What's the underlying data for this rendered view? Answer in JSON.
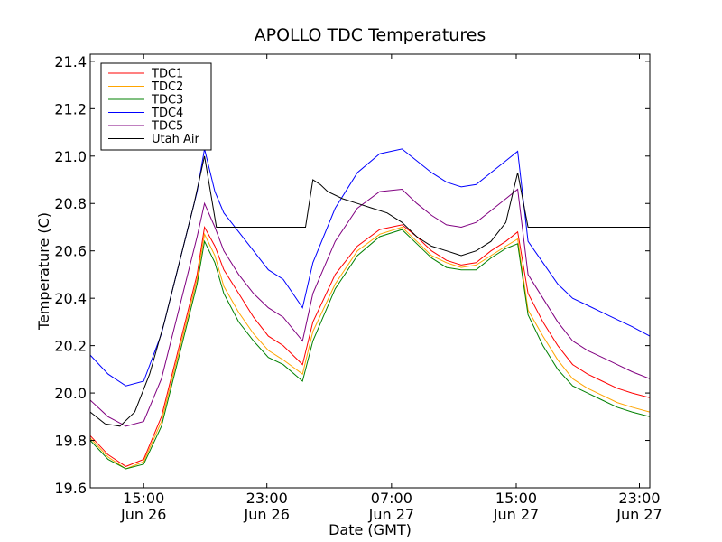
{
  "chart_data": {
    "type": "line",
    "title": "APOLLO TDC Temperatures",
    "xlabel": "Date (GMT)",
    "ylabel": "Temperature (C)",
    "x_unit": "hours since Jun 26 10:00 GMT",
    "xlim": [
      0,
      37.7
    ],
    "ylim": [
      19.6,
      21.43
    ],
    "y_ticks": [
      19.6,
      19.8,
      20.0,
      20.2,
      20.4,
      20.6,
      20.8,
      21.0,
      21.2,
      21.4
    ],
    "y_tick_labels": [
      "19.6",
      "19.8",
      "20.0",
      "20.2",
      "20.4",
      "20.6",
      "20.8",
      "21.0",
      "21.2",
      "21.4"
    ],
    "x_ticks": [
      {
        "x": 3.6,
        "time": "15:00",
        "date": "Jun 26"
      },
      {
        "x": 11.9,
        "time": "23:00",
        "date": "Jun 26"
      },
      {
        "x": 20.3,
        "time": "07:00",
        "date": "Jun 27"
      },
      {
        "x": 28.7,
        "time": "15:00",
        "date": "Jun 27"
      },
      {
        "x": 37.0,
        "time": "23:00",
        "date": "Jun 27"
      }
    ],
    "grid": false,
    "legend_position": "top-left",
    "series": [
      {
        "name": "TDC1",
        "color": "#ff0000",
        "x": [
          0,
          1.2,
          2.4,
          3.6,
          4.8,
          6.0,
          7.2,
          7.7,
          8.4,
          9.0,
          10.0,
          11.0,
          12.0,
          13.0,
          14.3,
          15.0,
          16.5,
          18.0,
          19.5,
          21.0,
          22.0,
          23.0,
          24.0,
          25.0,
          26.0,
          27.0,
          28.0,
          28.8,
          29.5,
          30.5,
          31.5,
          32.5,
          33.5,
          34.5,
          35.5,
          36.5,
          37.7
        ],
        "y": [
          19.82,
          19.74,
          19.69,
          19.72,
          19.9,
          20.2,
          20.5,
          20.7,
          20.62,
          20.52,
          20.42,
          20.32,
          20.24,
          20.2,
          20.12,
          20.3,
          20.5,
          20.62,
          20.69,
          20.71,
          20.66,
          20.6,
          20.56,
          20.54,
          20.55,
          20.6,
          20.64,
          20.68,
          20.42,
          20.3,
          20.2,
          20.12,
          20.08,
          20.05,
          20.02,
          20.0,
          19.98
        ]
      },
      {
        "name": "TDC2",
        "color": "#ffa500",
        "x": [
          0,
          1.2,
          2.4,
          3.6,
          4.8,
          6.0,
          7.2,
          7.7,
          8.4,
          9.0,
          10.0,
          11.0,
          12.0,
          13.0,
          14.3,
          15.0,
          16.5,
          18.0,
          19.5,
          21.0,
          22.0,
          23.0,
          24.0,
          25.0,
          26.0,
          27.0,
          28.0,
          28.8,
          29.5,
          30.5,
          31.5,
          32.5,
          33.5,
          34.5,
          35.5,
          36.5,
          37.7
        ],
        "y": [
          19.81,
          19.73,
          19.68,
          19.71,
          19.88,
          20.18,
          20.48,
          20.67,
          20.58,
          20.45,
          20.34,
          20.25,
          20.18,
          20.14,
          20.08,
          20.26,
          20.46,
          20.6,
          20.67,
          20.7,
          20.64,
          20.58,
          20.55,
          20.53,
          20.54,
          20.58,
          20.62,
          20.65,
          20.35,
          20.24,
          20.14,
          20.06,
          20.02,
          19.99,
          19.96,
          19.94,
          19.92
        ]
      },
      {
        "name": "TDC3",
        "color": "#008000",
        "x": [
          0,
          1.2,
          2.4,
          3.6,
          4.8,
          6.0,
          7.2,
          7.7,
          8.4,
          9.0,
          10.0,
          11.0,
          12.0,
          13.0,
          14.3,
          15.0,
          16.5,
          18.0,
          19.5,
          21.0,
          22.0,
          23.0,
          24.0,
          25.0,
          26.0,
          27.0,
          28.0,
          28.8,
          29.5,
          30.5,
          31.5,
          32.5,
          33.5,
          34.5,
          35.5,
          36.5,
          37.7
        ],
        "y": [
          19.8,
          19.72,
          19.68,
          19.7,
          19.86,
          20.16,
          20.46,
          20.64,
          20.55,
          20.42,
          20.3,
          20.22,
          20.15,
          20.12,
          20.05,
          20.22,
          20.44,
          20.58,
          20.66,
          20.69,
          20.63,
          20.57,
          20.53,
          20.52,
          20.52,
          20.57,
          20.61,
          20.63,
          20.33,
          20.2,
          20.1,
          20.03,
          20.0,
          19.97,
          19.94,
          19.92,
          19.9
        ]
      },
      {
        "name": "TDC4",
        "color": "#0000ff",
        "x": [
          0,
          1.2,
          2.4,
          3.6,
          4.8,
          6.0,
          7.2,
          7.7,
          8.4,
          9.0,
          10.0,
          11.0,
          12.0,
          13.0,
          14.3,
          15.0,
          16.5,
          18.0,
          19.5,
          21.0,
          22.0,
          23.0,
          24.0,
          25.0,
          26.0,
          27.0,
          28.0,
          28.8,
          29.5,
          30.5,
          31.5,
          32.5,
          33.5,
          34.5,
          35.5,
          36.5,
          37.7
        ],
        "y": [
          20.16,
          20.08,
          20.03,
          20.05,
          20.25,
          20.55,
          20.85,
          21.03,
          20.85,
          20.76,
          20.68,
          20.6,
          20.52,
          20.48,
          20.36,
          20.55,
          20.78,
          20.93,
          21.01,
          21.03,
          20.98,
          20.93,
          20.89,
          20.87,
          20.88,
          20.93,
          20.98,
          21.02,
          20.64,
          20.55,
          20.46,
          20.4,
          20.37,
          20.34,
          20.31,
          20.28,
          20.24
        ]
      },
      {
        "name": "TDC5",
        "color": "#800080",
        "x": [
          0,
          1.2,
          2.4,
          3.6,
          4.8,
          6.0,
          7.2,
          7.7,
          8.4,
          9.0,
          10.0,
          11.0,
          12.0,
          13.0,
          14.3,
          15.0,
          16.5,
          18.0,
          19.5,
          21.0,
          22.0,
          23.0,
          24.0,
          25.0,
          26.0,
          27.0,
          28.0,
          28.8,
          29.5,
          30.5,
          31.5,
          32.5,
          33.5,
          34.5,
          35.5,
          36.5,
          37.7
        ],
        "y": [
          19.97,
          19.9,
          19.86,
          19.88,
          20.06,
          20.36,
          20.66,
          20.8,
          20.7,
          20.6,
          20.5,
          20.42,
          20.36,
          20.32,
          20.22,
          20.42,
          20.64,
          20.78,
          20.85,
          20.86,
          20.8,
          20.75,
          20.71,
          20.7,
          20.72,
          20.77,
          20.82,
          20.86,
          20.5,
          20.4,
          20.3,
          20.22,
          20.18,
          20.15,
          20.12,
          20.09,
          20.06
        ]
      },
      {
        "name": "Utah Air",
        "color": "#000000",
        "x": [
          0,
          1.0,
          2.0,
          3.0,
          4.0,
          5.0,
          6.0,
          7.0,
          7.7,
          8.5,
          9.5,
          10.5,
          11.5,
          12.5,
          13.5,
          14.5,
          15.0,
          15.5,
          16.0,
          17.0,
          18.0,
          19.0,
          20.0,
          21.0,
          22.0,
          23.0,
          24.0,
          25.0,
          26.0,
          27.0,
          28.0,
          28.8,
          29.5,
          30.5,
          31.5,
          32.5,
          33.5,
          34.5,
          35.5,
          36.5,
          37.7
        ],
        "y": [
          19.92,
          19.87,
          19.86,
          19.92,
          20.08,
          20.3,
          20.55,
          20.8,
          21.0,
          20.7,
          20.7,
          20.7,
          20.7,
          20.7,
          20.7,
          20.7,
          20.9,
          20.88,
          20.85,
          20.82,
          20.8,
          20.78,
          20.76,
          20.72,
          20.66,
          20.62,
          20.6,
          20.58,
          20.6,
          20.64,
          20.72,
          20.93,
          20.7,
          20.7,
          20.7,
          20.7,
          20.7,
          20.7,
          20.7,
          20.7,
          20.7
        ]
      }
    ]
  }
}
